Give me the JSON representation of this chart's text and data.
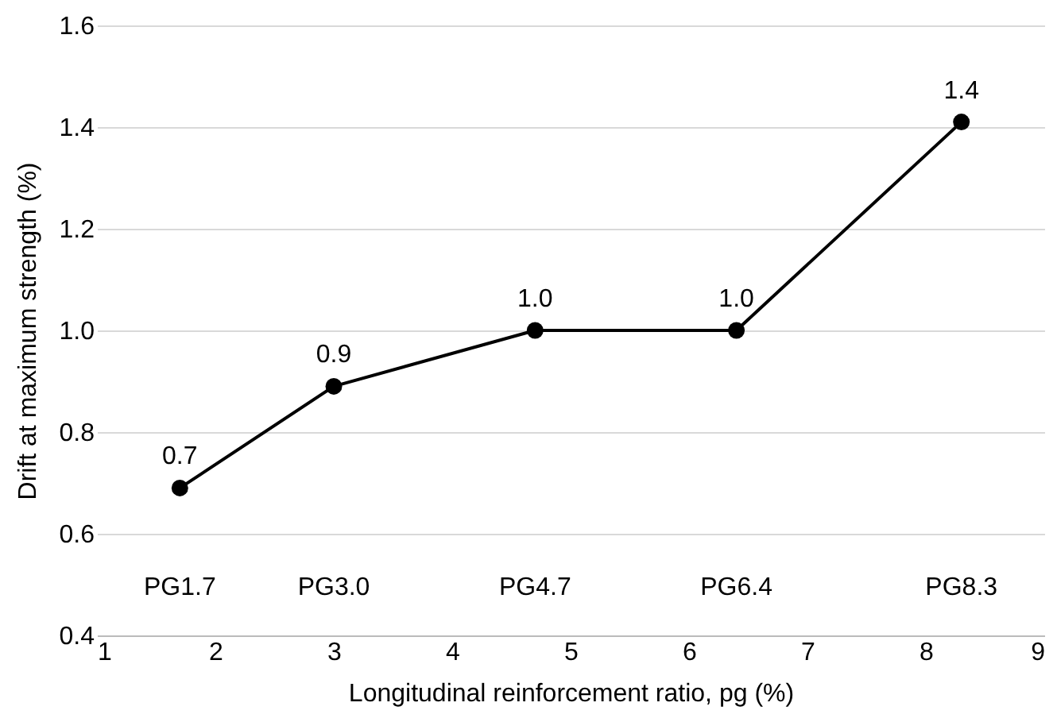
{
  "chart_data": {
    "type": "line",
    "xlabel": "Longitudinal reinforcement ratio, pg (%)",
    "ylabel": "Drift at maximum strength  (%)",
    "x": [
      1.7,
      3.0,
      4.7,
      6.4,
      8.3
    ],
    "series": [
      {
        "color": "#000000",
        "values": [
          0.69,
          0.89,
          1.0,
          1.0,
          1.41
        ],
        "value_labels": [
          "0.7",
          "0.9",
          "1.0",
          "1.0",
          "1.4"
        ]
      }
    ],
    "xlim": [
      1,
      9
    ],
    "xticks": [
      1,
      2,
      3,
      4,
      5,
      6,
      7,
      8,
      9
    ],
    "ylim": [
      0.4,
      1.6
    ],
    "yticks": [
      0.4,
      0.6,
      0.8,
      {
        "value": 1,
        "label": "1.0"
      },
      1.2,
      1.4,
      1.6
    ],
    "grid": "y",
    "marker": "circle",
    "line_style": "solid",
    "legend": false,
    "annotations": [
      "PG1.7",
      "PG3.0",
      "PG4.7",
      "PG6.4",
      "PG8.3"
    ]
  }
}
